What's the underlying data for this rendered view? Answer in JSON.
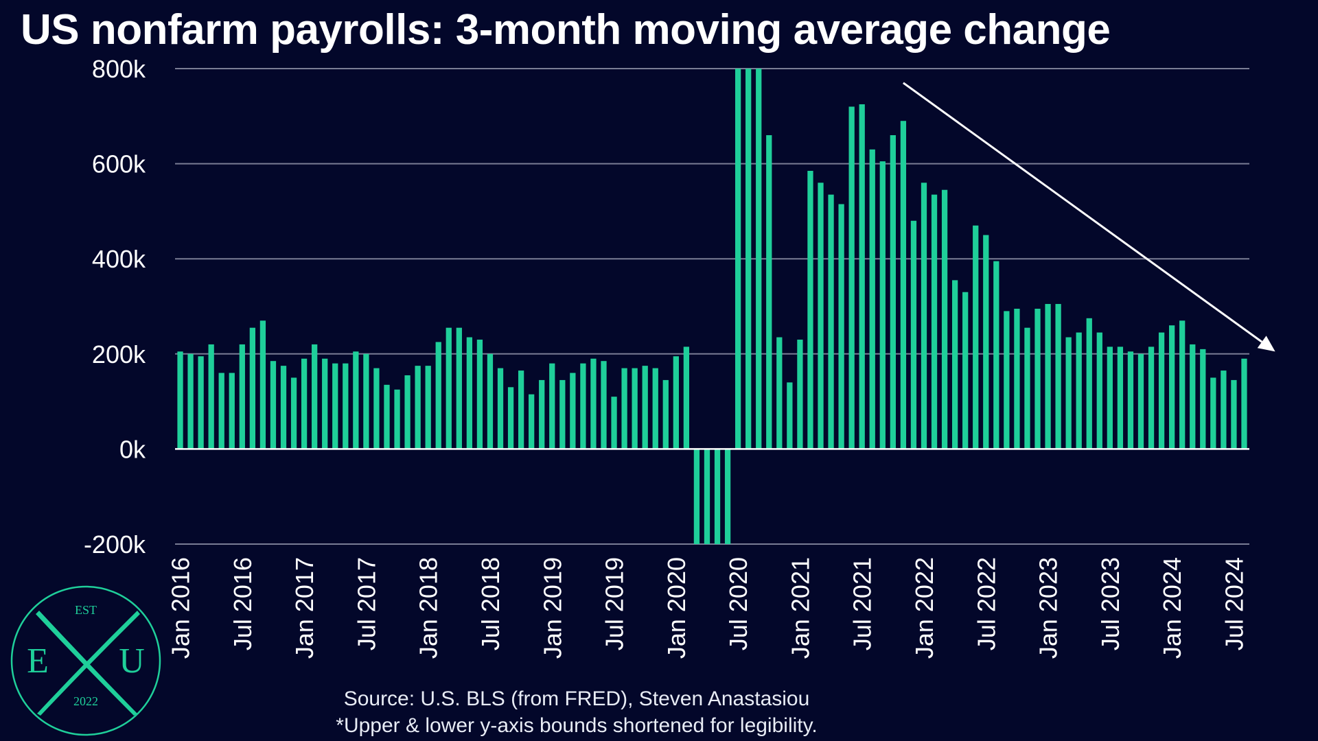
{
  "title": "US nonfarm payrolls: 3-month moving average change",
  "source": "Source: U.S. BLS (from FRED), Steven Anastasiou",
  "footnote": "*Upper & lower y-axis bounds shortened for legibility.",
  "logo": {
    "top_text": "EST",
    "left_letter": "E",
    "right_letter": "U",
    "bottom_text": "2022"
  },
  "colors": {
    "background": "#03072a",
    "bar": "#1fcf9a",
    "grid": "#7a7d95",
    "zero_line": "#ffffff",
    "arrow": "#ffffff",
    "logo": "#1fcf9a"
  },
  "chart_data": {
    "type": "bar",
    "title": "US nonfarm payrolls: 3-month moving average change",
    "ylim": [
      -200000,
      800000
    ],
    "yticks": [
      -200000,
      0,
      200000,
      400000,
      600000,
      800000
    ],
    "ytick_labels": [
      "-200k",
      "0k",
      "200k",
      "400k",
      "600k",
      "800k"
    ],
    "grid": true,
    "start_month": "Jan 2016",
    "xtick_labels": [
      "Jan 2016",
      "Jul 2016",
      "Jan 2017",
      "Jul 2017",
      "Jan 2018",
      "Jul 2018",
      "Jan 2019",
      "Jul 2019",
      "Jan 2020",
      "Jul 2020",
      "Jan 2021",
      "Jul 2021",
      "Jan 2022",
      "Jul 2022",
      "Jan 2023",
      "Jul 2023",
      "Jan 2024",
      "Jul 2024"
    ],
    "values": [
      205000,
      200000,
      195000,
      220000,
      160000,
      160000,
      220000,
      255000,
      270000,
      185000,
      175000,
      150000,
      190000,
      220000,
      190000,
      180000,
      180000,
      205000,
      200000,
      170000,
      135000,
      125000,
      155000,
      175000,
      175000,
      225000,
      255000,
      255000,
      235000,
      230000,
      200000,
      170000,
      130000,
      165000,
      115000,
      145000,
      180000,
      145000,
      160000,
      180000,
      190000,
      185000,
      110000,
      170000,
      170000,
      175000,
      170000,
      145000,
      195000,
      215000,
      -200000,
      -200000,
      -200000,
      -200000,
      800000,
      800000,
      800000,
      660000,
      235000,
      140000,
      230000,
      585000,
      560000,
      535000,
      515000,
      720000,
      725000,
      630000,
      605000,
      660000,
      690000,
      480000,
      560000,
      535000,
      545000,
      355000,
      330000,
      470000,
      450000,
      395000,
      290000,
      295000,
      255000,
      295000,
      305000,
      305000,
      235000,
      245000,
      275000,
      245000,
      215000,
      215000,
      205000,
      200000,
      215000,
      245000,
      260000,
      270000,
      220000,
      210000,
      150000,
      165000,
      145000,
      190000
    ],
    "clipped_note": "Upper & lower y-axis bounds shortened for legibility.",
    "trend_arrow": {
      "from_index": 70,
      "from_value": 770000,
      "to_index": 106,
      "to_value": 205000
    }
  }
}
